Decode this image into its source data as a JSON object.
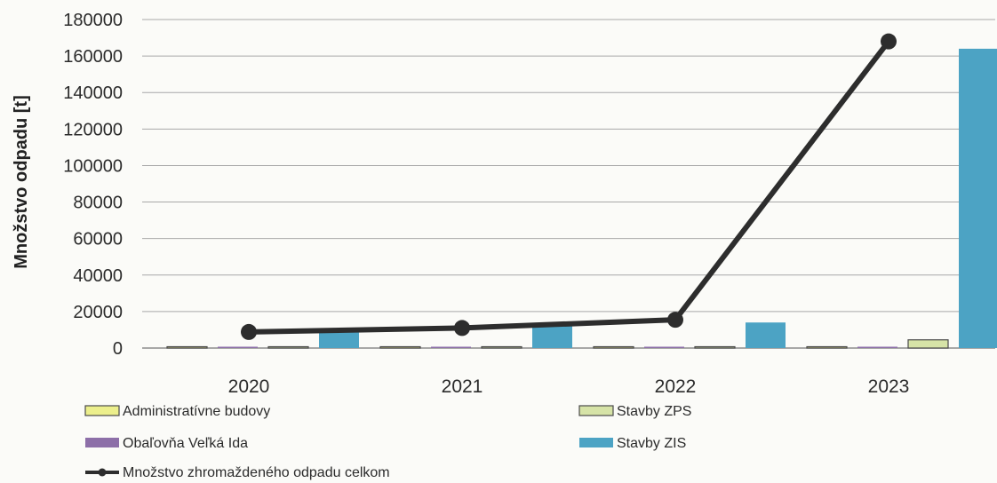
{
  "chart_data": {
    "type": "bar",
    "ylabel": "Množstvo odpadu [t]",
    "xlabel": "",
    "ylim": [
      0,
      180000
    ],
    "yticks": [
      0,
      20000,
      40000,
      60000,
      80000,
      100000,
      120000,
      140000,
      160000,
      180000
    ],
    "categories": [
      "2020",
      "2021",
      "2022",
      "2023"
    ],
    "grid": true,
    "legend_position": "bottom",
    "series": [
      {
        "name": "Administratívne budovy",
        "type": "bar",
        "color": "#ecef8c",
        "values": [
          400,
          400,
          500,
          700
        ]
      },
      {
        "name": "Obaľovňa Veľká Ida",
        "type": "bar",
        "color": "#8d6fa8",
        "values": [
          200,
          200,
          300,
          600
        ]
      },
      {
        "name": "Stavby ZPS",
        "type": "bar",
        "color": "#d6e3a7",
        "values": [
          200,
          300,
          300,
          4500
        ]
      },
      {
        "name": "Stavby ZIS",
        "type": "bar",
        "color": "#4ca3c4",
        "values": [
          8500,
          12000,
          14000,
          164000
        ]
      },
      {
        "name": "Množstvo zhromaždeného odpadu celkom",
        "type": "line",
        "color": "#2d2d2d",
        "values": [
          8800,
          11000,
          15500,
          168000
        ]
      }
    ]
  }
}
